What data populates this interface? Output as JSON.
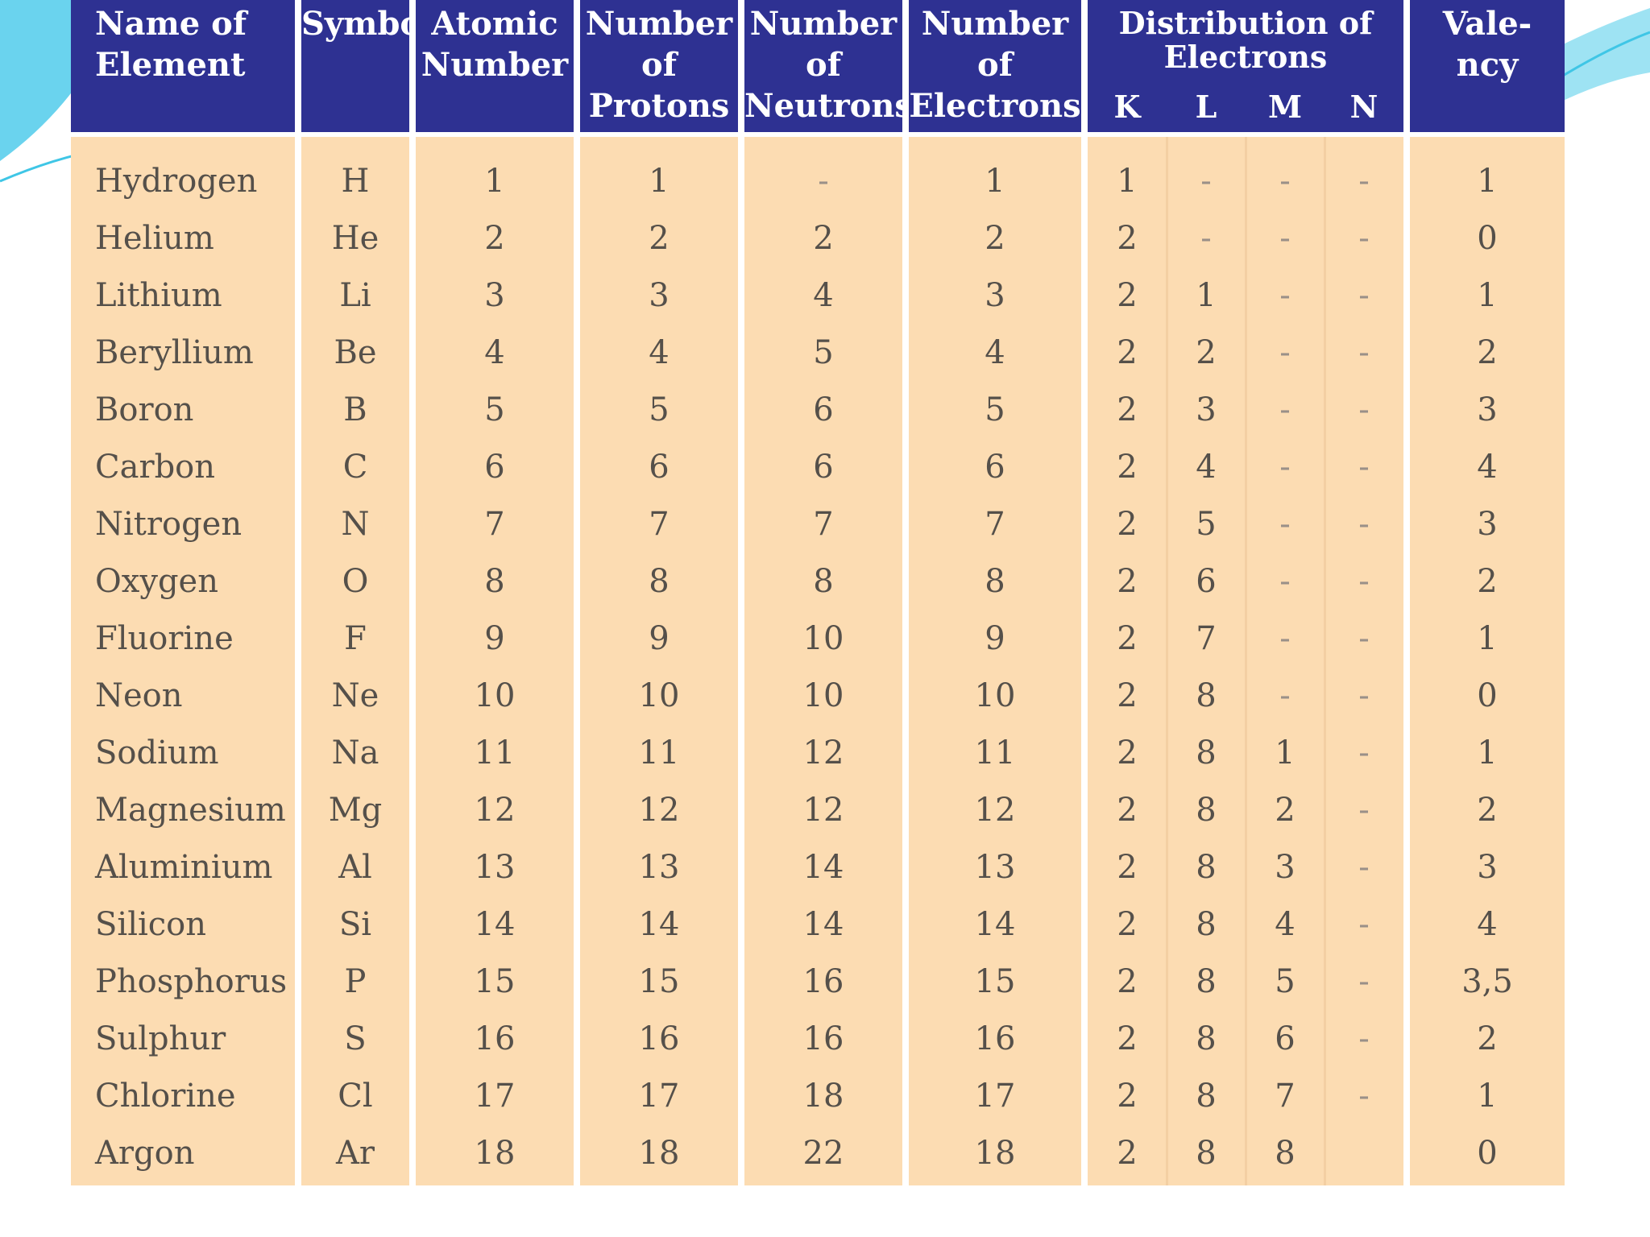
{
  "headers": {
    "name": "Name of\nElement",
    "symbol": "Symbol",
    "atomic": "Atomic\nNumber",
    "protons": "Number\nof\nProtons",
    "neutrons": "Number\nof\nNeutrons",
    "electrons": "Number\nof\nElectrons",
    "distribution": "Distribution of\nElectrons",
    "shell_k": "K",
    "shell_l": "L",
    "shell_m": "M",
    "shell_n": "N",
    "valency": "Vale-\nncy"
  },
  "rows": [
    {
      "name": "Hydrogen",
      "symbol": "H",
      "atomic": "1",
      "protons": "1",
      "neutrons": "-",
      "electrons": "1",
      "k": "1",
      "l": "-",
      "m": "-",
      "n": "-",
      "valency": "1"
    },
    {
      "name": "Helium",
      "symbol": "He",
      "atomic": "2",
      "protons": "2",
      "neutrons": "2",
      "electrons": "2",
      "k": "2",
      "l": "-",
      "m": "-",
      "n": "-",
      "valency": "0"
    },
    {
      "name": "Lithium",
      "symbol": "Li",
      "atomic": "3",
      "protons": "3",
      "neutrons": "4",
      "electrons": "3",
      "k": "2",
      "l": "1",
      "m": "-",
      "n": "-",
      "valency": "1"
    },
    {
      "name": "Beryllium",
      "symbol": "Be",
      "atomic": "4",
      "protons": "4",
      "neutrons": "5",
      "electrons": "4",
      "k": "2",
      "l": "2",
      "m": "-",
      "n": "-",
      "valency": "2"
    },
    {
      "name": "Boron",
      "symbol": "B",
      "atomic": "5",
      "protons": "5",
      "neutrons": "6",
      "electrons": "5",
      "k": "2",
      "l": "3",
      "m": "-",
      "n": "-",
      "valency": "3"
    },
    {
      "name": "Carbon",
      "symbol": "C",
      "atomic": "6",
      "protons": "6",
      "neutrons": "6",
      "electrons": "6",
      "k": "2",
      "l": "4",
      "m": "-",
      "n": "-",
      "valency": "4"
    },
    {
      "name": "Nitrogen",
      "symbol": "N",
      "atomic": "7",
      "protons": "7",
      "neutrons": "7",
      "electrons": "7",
      "k": "2",
      "l": "5",
      "m": "-",
      "n": "-",
      "valency": "3"
    },
    {
      "name": "Oxygen",
      "symbol": "O",
      "atomic": "8",
      "protons": "8",
      "neutrons": "8",
      "electrons": "8",
      "k": "2",
      "l": "6",
      "m": "-",
      "n": "-",
      "valency": "2"
    },
    {
      "name": "Fluorine",
      "symbol": "F",
      "atomic": "9",
      "protons": "9",
      "neutrons": "10",
      "electrons": "9",
      "k": "2",
      "l": "7",
      "m": "-",
      "n": "-",
      "valency": "1"
    },
    {
      "name": "Neon",
      "symbol": "Ne",
      "atomic": "10",
      "protons": "10",
      "neutrons": "10",
      "electrons": "10",
      "k": "2",
      "l": "8",
      "m": "-",
      "n": "-",
      "valency": "0"
    },
    {
      "name": "Sodium",
      "symbol": "Na",
      "atomic": "11",
      "protons": "11",
      "neutrons": "12",
      "electrons": "11",
      "k": "2",
      "l": "8",
      "m": "1",
      "n": "-",
      "valency": "1"
    },
    {
      "name": "Magnesium",
      "symbol": "Mg",
      "atomic": "12",
      "protons": "12",
      "neutrons": "12",
      "electrons": "12",
      "k": "2",
      "l": "8",
      "m": "2",
      "n": "-",
      "valency": "2"
    },
    {
      "name": "Aluminium",
      "symbol": "Al",
      "atomic": "13",
      "protons": "13",
      "neutrons": "14",
      "electrons": "13",
      "k": "2",
      "l": "8",
      "m": "3",
      "n": "-",
      "valency": "3"
    },
    {
      "name": "Silicon",
      "symbol": "Si",
      "atomic": "14",
      "protons": "14",
      "neutrons": "14",
      "electrons": "14",
      "k": "2",
      "l": "8",
      "m": "4",
      "n": "-",
      "valency": "4"
    },
    {
      "name": "Phosphorus",
      "symbol": "P",
      "atomic": "15",
      "protons": "15",
      "neutrons": "16",
      "electrons": "15",
      "k": "2",
      "l": "8",
      "m": "5",
      "n": "-",
      "valency": "3,5"
    },
    {
      "name": "Sulphur",
      "symbol": "S",
      "atomic": "16",
      "protons": "16",
      "neutrons": "16",
      "electrons": "16",
      "k": "2",
      "l": "8",
      "m": "6",
      "n": "-",
      "valency": "2"
    },
    {
      "name": "Chlorine",
      "symbol": "Cl",
      "atomic": "17",
      "protons": "17",
      "neutrons": "18",
      "electrons": "17",
      "k": "2",
      "l": "8",
      "m": "7",
      "n": "-",
      "valency": "1"
    },
    {
      "name": "Argon",
      "symbol": "Ar",
      "atomic": "18",
      "protons": "18",
      "neutrons": "22",
      "electrons": "18",
      "k": "2",
      "l": "8",
      "m": "8",
      "n": "",
      "valency": "0"
    }
  ],
  "colors": {
    "header_bg": "#2e3192",
    "body_bg": "#fcdcb2",
    "deco_cyan": "#3fc6e6"
  }
}
